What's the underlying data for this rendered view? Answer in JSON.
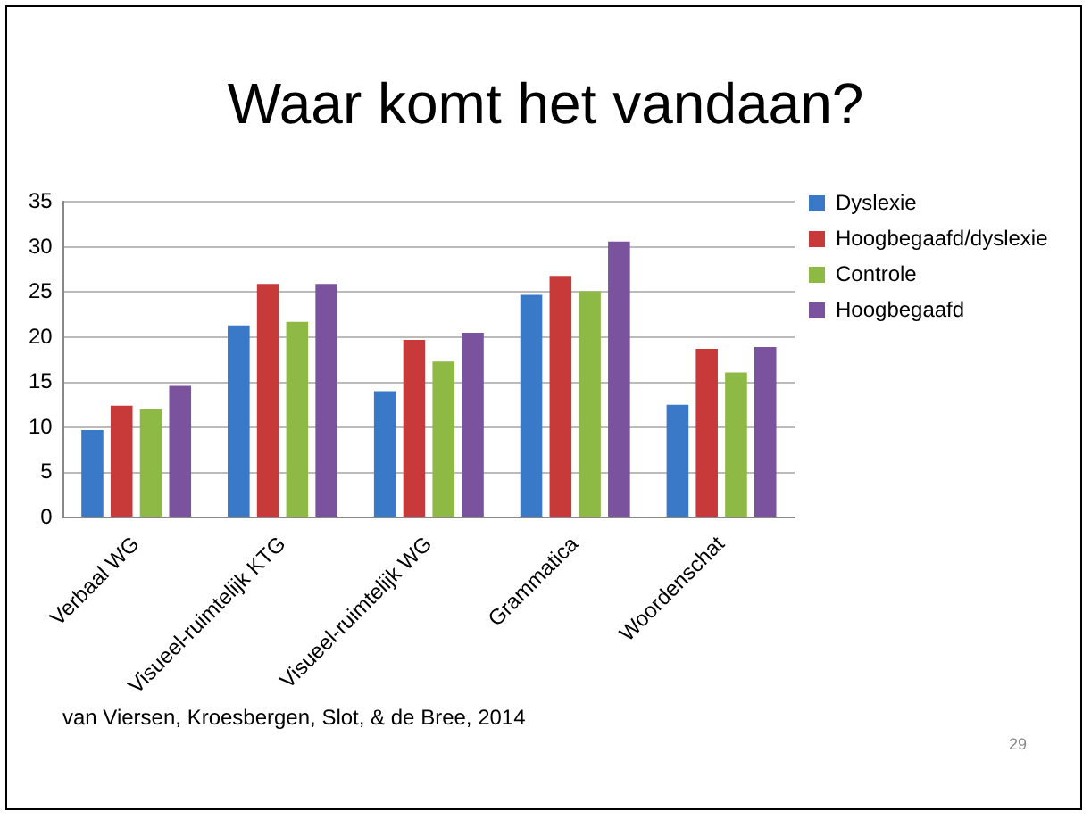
{
  "chart_data": {
    "type": "bar",
    "title": "Waar komt het vandaan?",
    "categories": [
      "Verbaal WG",
      "Visueel-ruimtelijk KTG",
      "Visueel-ruimtelijk WG",
      "Grammatica",
      "Woordenschat"
    ],
    "series": [
      {
        "name": "Dyslexie",
        "color": "#3a78c8",
        "values": [
          9.7,
          21.3,
          14.0,
          24.7,
          12.5
        ]
      },
      {
        "name": "Hoogbegaafd/dyslexie",
        "color": "#c83a3a",
        "values": [
          12.4,
          25.9,
          19.7,
          26.8,
          18.7
        ]
      },
      {
        "name": "Controle",
        "color": "#8db944",
        "values": [
          12.0,
          21.7,
          17.3,
          25.1,
          16.1
        ]
      },
      {
        "name": "Hoogbegaafd",
        "color": "#7b529e",
        "values": [
          14.6,
          25.9,
          20.5,
          30.6,
          18.9
        ]
      }
    ],
    "ylim": [
      0,
      35
    ],
    "yticks": [
      0,
      5,
      10,
      15,
      20,
      25,
      30,
      35
    ],
    "grid": "y",
    "legend": "right",
    "annotations": [
      "van Viersen, Kroesbergen, Slot, & de Bree, 2014",
      "29"
    ]
  }
}
